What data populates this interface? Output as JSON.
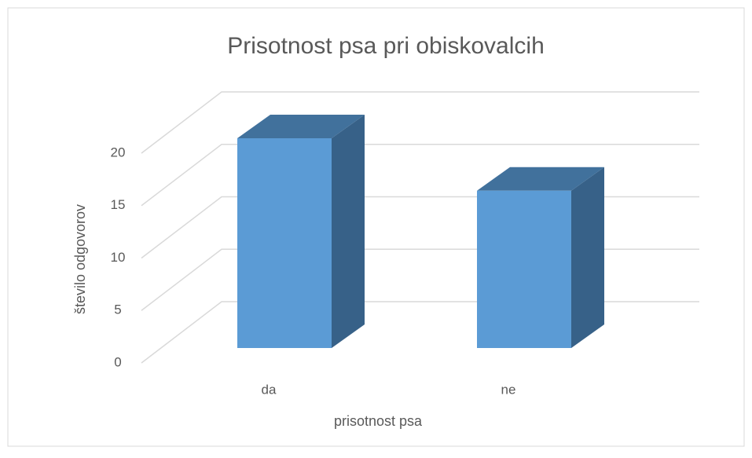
{
  "chart_data": {
    "type": "bar",
    "title": "Prisotnost psa pri obiskovalcih",
    "x_label": "prisotnost psa",
    "y_label": "število odgovorov",
    "categories": [
      "da",
      "ne"
    ],
    "values": [
      20,
      15
    ],
    "color": "#5b9bd5",
    "ylim": [
      0,
      20
    ],
    "yticks": [
      0,
      5,
      10,
      15,
      20
    ],
    "grid": true
  }
}
